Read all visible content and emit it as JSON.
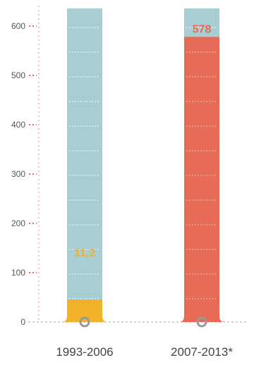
{
  "chart_data": {
    "type": "bar",
    "categories": [
      "1993-2006",
      "2007-2013*"
    ],
    "values": [
      11.2,
      578
    ],
    "value_labels": [
      "11,2",
      "578"
    ],
    "ylim": [
      0,
      630
    ],
    "yticks": [
      0,
      100,
      200,
      300,
      400,
      500,
      600
    ],
    "ytick_labels": [
      "0",
      "100",
      "200",
      "300",
      "400",
      "500",
      "600"
    ],
    "title": "",
    "xlabel": "",
    "ylabel": "",
    "grid": false,
    "colors": {
      "track": "#a8ced3",
      "track_dots": "#ffffff",
      "bar_1": "#f2b12a",
      "bar_2": "#e66a56",
      "label_1": "#f2b12a",
      "label_2": "#e66a56",
      "tick_dots": "#e66a56",
      "axis_line": "#e66a56",
      "baseline": "#b9b9b9",
      "dot": "#9a9a9a"
    }
  }
}
